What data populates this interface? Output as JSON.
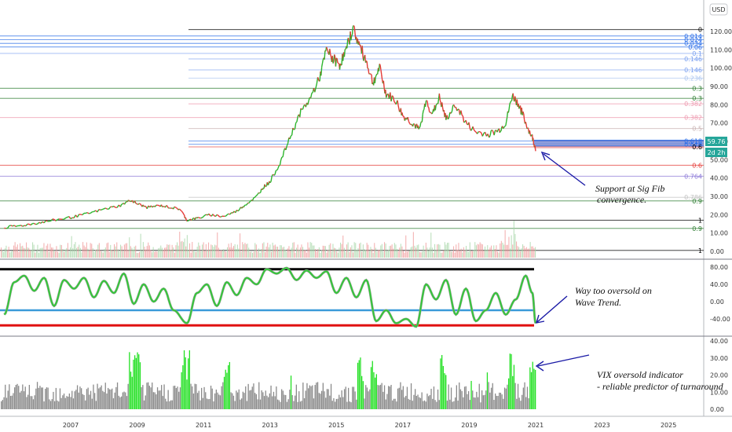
{
  "chart_data": {
    "type": "line",
    "currency": "USD",
    "x_labels": [
      "2007",
      "2009",
      "2011",
      "2013",
      "2015",
      "2017",
      "2019",
      "2021",
      "2023",
      "2025"
    ],
    "price_badge": {
      "value": "59.76",
      "countdown": "2d 2h"
    },
    "price_panel": {
      "y_ticks": [
        "120.00",
        "110.00",
        "100.00",
        "90.00",
        "80.00",
        "70.00",
        "60.00",
        "50.00",
        "40.00",
        "30.00",
        "20.00",
        "10.00",
        "0.00"
      ],
      "ylim": [
        0,
        125
      ],
      "series": [
        {
          "x": 2005.0,
          "y": 13
        },
        {
          "x": 2005.5,
          "y": 14
        },
        {
          "x": 2006.0,
          "y": 15.5
        },
        {
          "x": 2006.5,
          "y": 17
        },
        {
          "x": 2007.0,
          "y": 18.5
        },
        {
          "x": 2007.5,
          "y": 20.5
        },
        {
          "x": 2008.0,
          "y": 23
        },
        {
          "x": 2008.5,
          "y": 25
        },
        {
          "x": 2008.8,
          "y": 28
        },
        {
          "x": 2009.0,
          "y": 26
        },
        {
          "x": 2009.3,
          "y": 24
        },
        {
          "x": 2009.7,
          "y": 25
        },
        {
          "x": 2010.0,
          "y": 24
        },
        {
          "x": 2010.3,
          "y": 23
        },
        {
          "x": 2010.5,
          "y": 17
        },
        {
          "x": 2010.8,
          "y": 18
        },
        {
          "x": 2011.2,
          "y": 20
        },
        {
          "x": 2011.6,
          "y": 19
        },
        {
          "x": 2012.0,
          "y": 22
        },
        {
          "x": 2012.3,
          "y": 26
        },
        {
          "x": 2012.6,
          "y": 30
        },
        {
          "x": 2012.8,
          "y": 35
        },
        {
          "x": 2013.0,
          "y": 38
        },
        {
          "x": 2013.3,
          "y": 48
        },
        {
          "x": 2013.6,
          "y": 62
        },
        {
          "x": 2013.9,
          "y": 75
        },
        {
          "x": 2014.2,
          "y": 83
        },
        {
          "x": 2014.5,
          "y": 95
        },
        {
          "x": 2014.7,
          "y": 110
        },
        {
          "x": 2014.9,
          "y": 105
        },
        {
          "x": 2015.1,
          "y": 102
        },
        {
          "x": 2015.3,
          "y": 110
        },
        {
          "x": 2015.5,
          "y": 122
        },
        {
          "x": 2015.7,
          "y": 112
        },
        {
          "x": 2015.9,
          "y": 104
        },
        {
          "x": 2016.1,
          "y": 92
        },
        {
          "x": 2016.3,
          "y": 100
        },
        {
          "x": 2016.5,
          "y": 86
        },
        {
          "x": 2016.8,
          "y": 82
        },
        {
          "x": 2017.0,
          "y": 74
        },
        {
          "x": 2017.3,
          "y": 70
        },
        {
          "x": 2017.5,
          "y": 66
        },
        {
          "x": 2017.7,
          "y": 82
        },
        {
          "x": 2017.9,
          "y": 75
        },
        {
          "x": 2018.1,
          "y": 84
        },
        {
          "x": 2018.3,
          "y": 72
        },
        {
          "x": 2018.6,
          "y": 80
        },
        {
          "x": 2018.9,
          "y": 70
        },
        {
          "x": 2019.2,
          "y": 65
        },
        {
          "x": 2019.6,
          "y": 64
        },
        {
          "x": 2019.9,
          "y": 66
        },
        {
          "x": 2020.1,
          "y": 70
        },
        {
          "x": 2020.3,
          "y": 85
        },
        {
          "x": 2020.5,
          "y": 80
        },
        {
          "x": 2020.7,
          "y": 70
        },
        {
          "x": 2020.9,
          "y": 62
        },
        {
          "x": 2021.0,
          "y": 56
        }
      ],
      "fib_labels": [
        {
          "label": "0",
          "y": 121,
          "color": "#000000"
        },
        {
          "label": "0.014",
          "y": 117.5,
          "color": "#2b6ee8"
        },
        {
          "label": "0.024",
          "y": 115.5,
          "color": "#2b6ee8"
        },
        {
          "label": "0.034",
          "y": 113.5,
          "color": "#2b6ee8"
        },
        {
          "label": "0.06",
          "y": 111.5,
          "color": "#2b6ee8"
        },
        {
          "label": "0.1",
          "y": 108,
          "color": "#7aa0f0"
        },
        {
          "label": "0.146",
          "y": 105,
          "color": "#7aa0f0"
        },
        {
          "label": "0.146",
          "y": 99,
          "color": "#7aa0f0"
        },
        {
          "label": "0.236",
          "y": 94.5,
          "color": "#a9c3ef"
        },
        {
          "label": "0.3",
          "y": 89,
          "color": "#2e7d32"
        },
        {
          "label": "0.3",
          "y": 83.5,
          "color": "#2e7d32"
        },
        {
          "label": "0.382",
          "y": 80.5,
          "color": "#ee9ab0"
        },
        {
          "label": "0.382",
          "y": 73,
          "color": "#ee9ab0"
        },
        {
          "label": "0.5",
          "y": 67,
          "color": "#c9b3b3"
        },
        {
          "label": "0.618",
          "y": 60.2,
          "color": "#2b6ee8"
        },
        {
          "label": "0.618",
          "y": 58.4,
          "color": "#2b6ee8"
        },
        {
          "label": "0.6",
          "y": 57,
          "color": "#000000"
        },
        {
          "label": "0.6",
          "y": 47,
          "color": "#e53935"
        },
        {
          "label": "0.764",
          "y": 41,
          "color": "#8c7ad8"
        },
        {
          "label": "0.786",
          "y": 29.5,
          "color": "#c2c2c2"
        },
        {
          "label": "0.9",
          "y": 27.5,
          "color": "#2e7d32"
        },
        {
          "label": "1",
          "y": 17,
          "color": "#000000"
        },
        {
          "label": "0.9",
          "y": 12.5,
          "color": "#2e7d32"
        },
        {
          "label": "1",
          "y": 0.5,
          "color": "#000000"
        }
      ]
    },
    "wave_trend": {
      "y_ticks": [
        "80.00",
        "40.00",
        "0.00",
        "-40.00"
      ],
      "ylim": [
        -62,
        92
      ],
      "upper_line": 75,
      "mid_line": -20,
      "lower_line": -55,
      "series": [
        {
          "x": 2005.0,
          "y": -30
        },
        {
          "x": 2005.3,
          "y": 45
        },
        {
          "x": 2005.6,
          "y": 60
        },
        {
          "x": 2005.9,
          "y": 25
        },
        {
          "x": 2006.2,
          "y": 55
        },
        {
          "x": 2006.5,
          "y": -10
        },
        {
          "x": 2006.8,
          "y": 50
        },
        {
          "x": 2007.1,
          "y": 30
        },
        {
          "x": 2007.4,
          "y": 55
        },
        {
          "x": 2007.7,
          "y": 10
        },
        {
          "x": 2008.0,
          "y": 48
        },
        {
          "x": 2008.3,
          "y": 20
        },
        {
          "x": 2008.6,
          "y": 65
        },
        {
          "x": 2008.9,
          "y": -5
        },
        {
          "x": 2009.2,
          "y": 40
        },
        {
          "x": 2009.5,
          "y": 0
        },
        {
          "x": 2009.8,
          "y": 30
        },
        {
          "x": 2010.1,
          "y": -20
        },
        {
          "x": 2010.5,
          "y": -50
        },
        {
          "x": 2010.8,
          "y": 20
        },
        {
          "x": 2011.1,
          "y": 40
        },
        {
          "x": 2011.4,
          "y": -10
        },
        {
          "x": 2011.7,
          "y": 45
        },
        {
          "x": 2012.0,
          "y": 15
        },
        {
          "x": 2012.3,
          "y": 55
        },
        {
          "x": 2012.6,
          "y": 40
        },
        {
          "x": 2012.9,
          "y": 75
        },
        {
          "x": 2013.2,
          "y": 65
        },
        {
          "x": 2013.5,
          "y": 78
        },
        {
          "x": 2013.8,
          "y": 50
        },
        {
          "x": 2014.1,
          "y": 72
        },
        {
          "x": 2014.4,
          "y": 55
        },
        {
          "x": 2014.7,
          "y": 70
        },
        {
          "x": 2015.0,
          "y": 20
        },
        {
          "x": 2015.3,
          "y": 55
        },
        {
          "x": 2015.6,
          "y": 10
        },
        {
          "x": 2015.9,
          "y": 50
        },
        {
          "x": 2016.2,
          "y": -45
        },
        {
          "x": 2016.5,
          "y": -20
        },
        {
          "x": 2016.8,
          "y": -50
        },
        {
          "x": 2017.1,
          "y": -40
        },
        {
          "x": 2017.4,
          "y": -58
        },
        {
          "x": 2017.7,
          "y": 40
        },
        {
          "x": 2018.0,
          "y": 5
        },
        {
          "x": 2018.3,
          "y": 50
        },
        {
          "x": 2018.6,
          "y": -30
        },
        {
          "x": 2018.9,
          "y": 30
        },
        {
          "x": 2019.2,
          "y": -45
        },
        {
          "x": 2019.5,
          "y": -20
        },
        {
          "x": 2019.8,
          "y": 20
        },
        {
          "x": 2020.1,
          "y": -30
        },
        {
          "x": 2020.4,
          "y": 5
        },
        {
          "x": 2020.7,
          "y": 60
        },
        {
          "x": 2020.9,
          "y": 20
        },
        {
          "x": 2021.0,
          "y": -50
        }
      ]
    },
    "vix_panel": {
      "y_ticks": [
        "40.00",
        "30.00",
        "20.00",
        "10.00",
        "0.00"
      ],
      "ylim": [
        -5,
        42
      ]
    },
    "annotations": {
      "support_line1": "Support at Sig Fib",
      "support_line2": "convergence.",
      "wave_line1": "Way too oversold on",
      "wave_line2": "Wave Trend.",
      "vix_line1": "VIX oversold indicator",
      "vix_line2": " - reliable predictor of turnaround"
    }
  }
}
